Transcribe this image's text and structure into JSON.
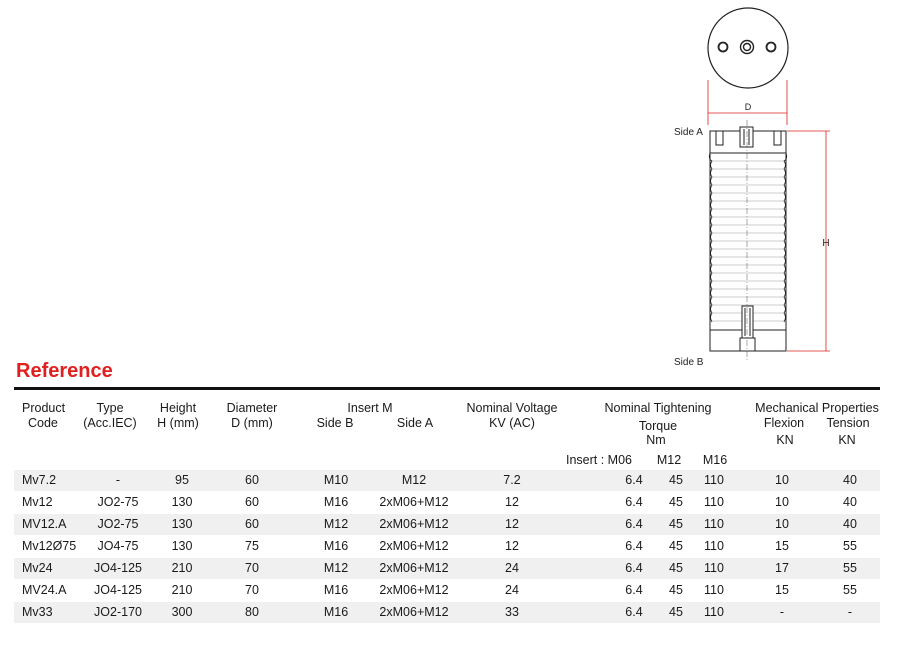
{
  "drawing": {
    "side_a": "Side A",
    "side_b": "Side B",
    "dim_d": "D",
    "dim_h": "H"
  },
  "reference_title": "Reference",
  "headers": {
    "product_code_1": "Product",
    "product_code_2": "Code",
    "type_1": "Type",
    "type_2": "(Acc.IEC)",
    "height_1": "Height",
    "height_2": "H (mm)",
    "diameter_1": "Diameter",
    "diameter_2": "D (mm)",
    "insert": "Insert M",
    "side_b": "Side B",
    "side_a": "Side A",
    "voltage_1": "Nominal Voltage",
    "voltage_2": "KV (AC)",
    "tightening": "Nominal Tightening",
    "torque": "Torque",
    "nm": "Nm",
    "insert_m06": "Insert : M06",
    "m12": "M12",
    "m16": "M16",
    "mech": "Mechanical Properties",
    "flexion": "Flexion",
    "tension": "Tension",
    "kn_flexion": "KN",
    "kn_tension": "KN"
  },
  "rows": [
    {
      "code": "Mv7.2",
      "type": "-",
      "height": "95",
      "diameter": "60",
      "side_b": "M10",
      "side_a": "M12",
      "kv": "7.2",
      "m06": "6.4",
      "m12": "45",
      "m16": "110",
      "flexion": "10",
      "tension": "40"
    },
    {
      "code": "Mv12",
      "type": "JO2-75",
      "height": "130",
      "diameter": "60",
      "side_b": "M16",
      "side_a": "2xM06+M12",
      "kv": "12",
      "m06": "6.4",
      "m12": "45",
      "m16": "110",
      "flexion": "10",
      "tension": "40"
    },
    {
      "code": "MV12.A",
      "type": "JO2-75",
      "height": "130",
      "diameter": "60",
      "side_b": "M12",
      "side_a": "2xM06+M12",
      "kv": "12",
      "m06": "6.4",
      "m12": "45",
      "m16": "110",
      "flexion": "10",
      "tension": "40"
    },
    {
      "code": "Mv12Ø75",
      "type": "JO4-75",
      "height": "130",
      "diameter": "75",
      "side_b": "M16",
      "side_a": "2xM06+M12",
      "kv": "12",
      "m06": "6.4",
      "m12": "45",
      "m16": "110",
      "flexion": "15",
      "tension": "55"
    },
    {
      "code": "Mv24",
      "type": "JO4-125",
      "height": "210",
      "diameter": "70",
      "side_b": "M12",
      "side_a": "2xM06+M12",
      "kv": "24",
      "m06": "6.4",
      "m12": "45",
      "m16": "110",
      "flexion": "17",
      "tension": "55"
    },
    {
      "code": "MV24.A",
      "type": "JO4-125",
      "height": "210",
      "diameter": "70",
      "side_b": "M16",
      "side_a": "2xM06+M12",
      "kv": "24",
      "m06": "6.4",
      "m12": "45",
      "m16": "110",
      "flexion": "15",
      "tension": "55"
    },
    {
      "code": "Mv33",
      "type": "JO2-170",
      "height": "300",
      "diameter": "80",
      "side_b": "M16",
      "side_a": "2xM06+M12",
      "kv": "33",
      "m06": "6.4",
      "m12": "45",
      "m16": "110",
      "flexion": "-",
      "tension": "-"
    }
  ]
}
